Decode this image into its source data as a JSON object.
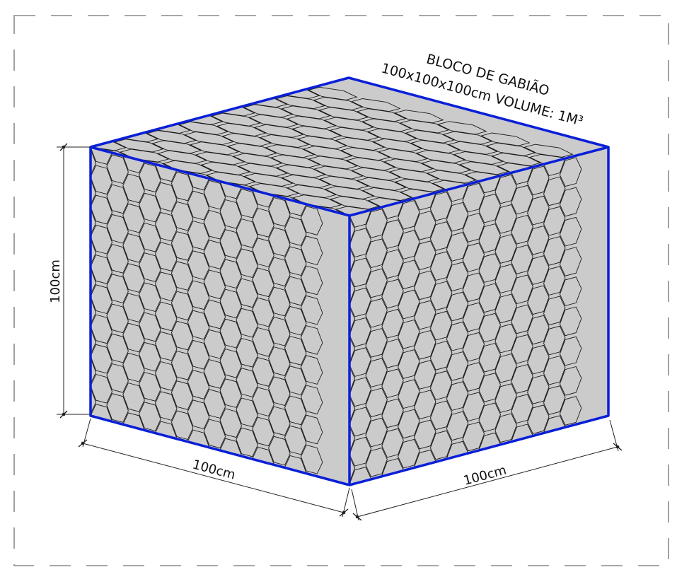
{
  "title": {
    "line1": "BLOCO DE GABIÃO",
    "line2": "100x100x100cm VOLUME: 1M³"
  },
  "dimensions": {
    "height": "100cm",
    "width_left": "100cm",
    "width_right": "100cm"
  },
  "colors": {
    "edge": "#0a1fd8",
    "face_fill": "#cbcbcb",
    "mesh": "#1a1a1a",
    "border": "#8a8a8a"
  }
}
